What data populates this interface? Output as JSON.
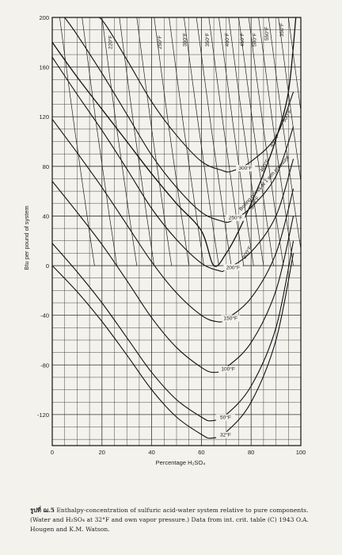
{
  "chart_data": {
    "type": "line",
    "title": "",
    "xlabel": "Percentage H₂SO₄",
    "ylabel": "Btu per pound of system",
    "xlim": [
      0,
      100
    ],
    "ylim": [
      -145,
      200
    ],
    "x_ticks": [
      "0",
      "20",
      "40",
      "60",
      "80",
      "100"
    ],
    "y_ticks": [
      "200",
      "160",
      "120",
      "80",
      "40",
      "0",
      "-40",
      "-80",
      "-120"
    ],
    "grid": true,
    "boiling_curve_label": "Boiling points at 1 atm pressure",
    "isotherms": [
      {
        "label": "32°F",
        "t": 32,
        "x": [
          0,
          10,
          20,
          30,
          40,
          50,
          60,
          64,
          70,
          80,
          90,
          97
        ],
        "y": [
          0,
          -21,
          -45,
          -72,
          -100,
          -122,
          -136,
          -139,
          -134,
          -110,
          -60,
          10
        ]
      },
      {
        "label": "50°F",
        "t": 50,
        "x": [
          0,
          10,
          20,
          30,
          40,
          50,
          60,
          64,
          70,
          80,
          90,
          97
        ],
        "y": [
          18,
          -5,
          -30,
          -58,
          -86,
          -108,
          -122,
          -125,
          -120,
          -97,
          -50,
          20
        ]
      },
      {
        "label": "100°F",
        "t": 100,
        "x": [
          0,
          10,
          20,
          30,
          40,
          50,
          60,
          65,
          70,
          80,
          90,
          97
        ],
        "y": [
          68,
          43,
          17,
          -12,
          -42,
          -66,
          -82,
          -86,
          -82,
          -62,
          -20,
          40
        ]
      },
      {
        "label": "150°F",
        "t": 150,
        "x": [
          0,
          10,
          20,
          30,
          40,
          50,
          60,
          66,
          70,
          80,
          90,
          97
        ],
        "y": [
          118,
          91,
          63,
          33,
          3,
          -22,
          -40,
          -45,
          -43,
          -26,
          10,
          62
        ]
      },
      {
        "label": "200°F",
        "t": 200,
        "x": [
          0,
          10,
          20,
          30,
          40,
          50,
          60,
          67,
          70,
          80,
          90,
          97
        ],
        "y": [
          168,
          138,
          109,
          78,
          46,
          21,
          2,
          -4,
          -3,
          11,
          40,
          86
        ]
      },
      {
        "label": "250°F",
        "t": 250,
        "x": [
          5,
          10,
          20,
          30,
          40,
          50,
          60,
          68,
          72,
          80,
          90,
          97
        ],
        "y": [
          200,
          186,
          155,
          122,
          89,
          63,
          43,
          36,
          36,
          47,
          72,
          112
        ]
      },
      {
        "label": "300°F",
        "t": 300,
        "x": [
          15,
          20,
          30,
          40,
          50,
          60,
          68,
          72,
          80,
          90,
          97
        ],
        "y": [
          200,
          198,
          166,
          132,
          105,
          84,
          77,
          76,
          84,
          104,
          140
        ]
      }
    ],
    "boiling_curve": {
      "x": [
        0,
        10,
        20,
        30,
        40,
        50,
        60,
        65,
        70,
        75,
        80,
        85,
        90,
        95,
        98
      ],
      "y": [
        180,
        152,
        126,
        100,
        74,
        50,
        28,
        0,
        10,
        28,
        50,
        74,
        102,
        140,
        200
      ]
    },
    "top_labels": [
      "220°F",
      "250°F",
      "300°F",
      "350°F",
      "400°F",
      "450°F",
      "500°F",
      "550°F",
      "350°F",
      "500°F",
      "450°F",
      "400°F",
      "350°F",
      "300°F"
    ]
  },
  "caption": {
    "fig_no": "รูปที่ ฌ.5",
    "text": " Enthalpy-concentration of sulfuric acid-water system relative to pure components. (Water and H₂SO₄ at 32°F and own vapor pressure.) Data from int. crit. table (C) 1943 O.A. Hougen and K.M. Watson."
  }
}
